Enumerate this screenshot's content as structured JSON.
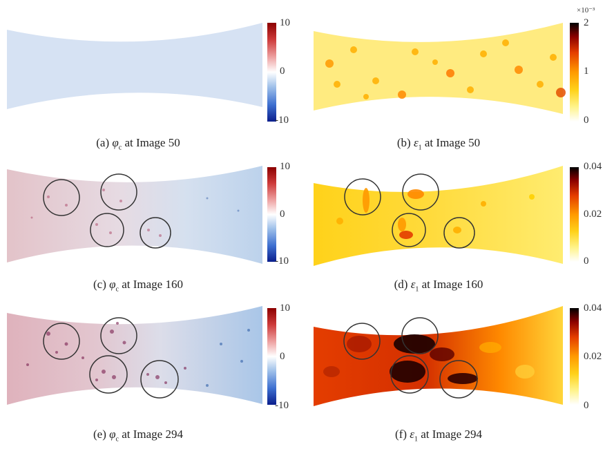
{
  "colormaps": {
    "diverging": [
      "#0a1e8c",
      "#3d6fd0",
      "#9fc0ea",
      "#ffffff",
      "#eea3a3",
      "#cd3a3a",
      "#8c0000"
    ],
    "heat": [
      "#ffffff",
      "#fff38a",
      "#ffd21a",
      "#ff9a00",
      "#e43d00",
      "#8a0000",
      "#000000"
    ]
  },
  "panels": [
    {
      "id": "a",
      "caption": {
        "prefix": "(a) ",
        "symbol": "φ",
        "subscript": "c",
        "suffix": " at Image 50"
      },
      "colormap": "diverging",
      "colorbar_ticks": [
        "10",
        "0",
        "-10"
      ],
      "exponent": "",
      "circles": 0
    },
    {
      "id": "b",
      "caption": {
        "prefix": "(b) ",
        "symbol": "ε",
        "subscript": "1",
        "suffix": " at Image 50"
      },
      "colormap": "heat",
      "colorbar_ticks": [
        "2",
        "1",
        "0"
      ],
      "exponent": "×10⁻³",
      "circles": 0
    },
    {
      "id": "c",
      "caption": {
        "prefix": "(c) ",
        "symbol": "φ",
        "subscript": "c",
        "suffix": " at Image 160"
      },
      "colormap": "diverging",
      "colorbar_ticks": [
        "10",
        "0",
        "-10"
      ],
      "exponent": "",
      "circles": 4
    },
    {
      "id": "d",
      "caption": {
        "prefix": "(d) ",
        "symbol": "ε",
        "subscript": "1",
        "suffix": " at Image 160"
      },
      "colormap": "heat",
      "colorbar_ticks": [
        "0.04",
        "0.02",
        "0"
      ],
      "exponent": "",
      "circles": 4
    },
    {
      "id": "e",
      "caption": {
        "prefix": "(e) ",
        "symbol": "φ",
        "subscript": "c",
        "suffix": " at Image 294"
      },
      "colormap": "diverging",
      "colorbar_ticks": [
        "10",
        "0",
        "-10"
      ],
      "exponent": "",
      "circles": 4
    },
    {
      "id": "f",
      "caption": {
        "prefix": "(f) ",
        "symbol": "ε",
        "subscript": "1",
        "suffix": " at Image 294"
      },
      "colormap": "heat",
      "colorbar_ticks": [
        "0.04",
        "0.02",
        "0"
      ],
      "exponent": "",
      "circles": 4
    }
  ]
}
